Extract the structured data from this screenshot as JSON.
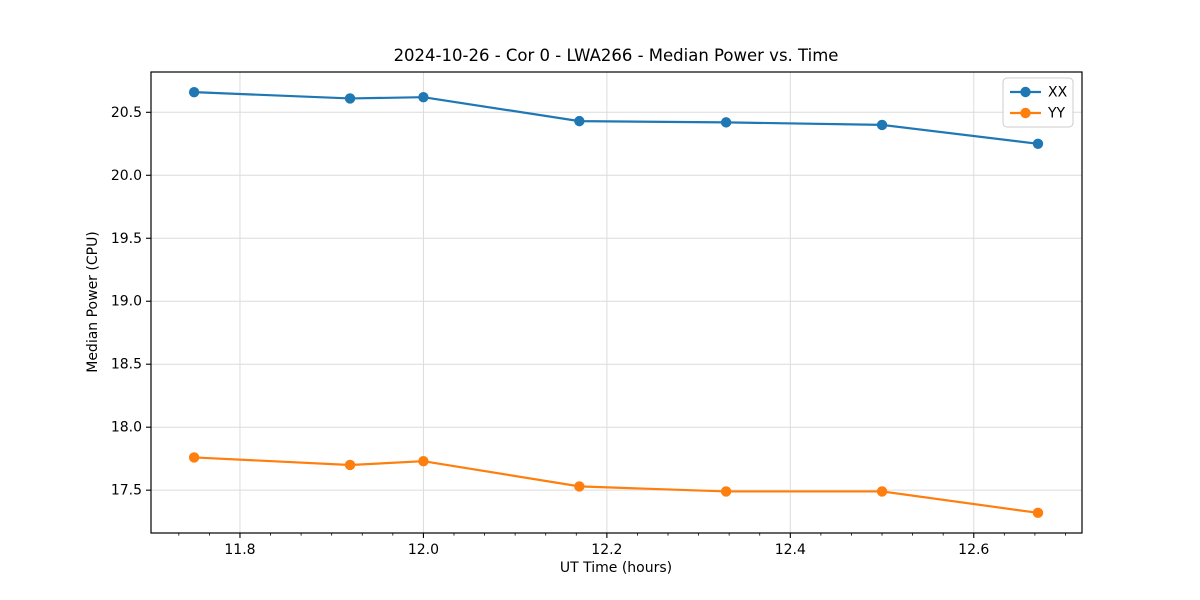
{
  "chart_data": {
    "type": "line",
    "title": "2024-10-26 - Cor 0 - LWA266 - Median Power vs. Time",
    "xlabel": "UT Time (hours)",
    "ylabel": "Median Power (CPU)",
    "x": [
      11.75,
      11.92,
      12.0,
      12.17,
      12.33,
      12.5,
      12.67
    ],
    "series": [
      {
        "name": "XX",
        "color": "#1f77b4",
        "values": [
          20.66,
          20.61,
          20.62,
          20.43,
          20.42,
          20.4,
          20.25
        ]
      },
      {
        "name": "YY",
        "color": "#ff7f0e",
        "values": [
          17.76,
          17.7,
          17.73,
          17.53,
          17.49,
          17.49,
          17.32
        ]
      }
    ],
    "xlim": [
      11.703,
      12.718
    ],
    "ylim": [
      17.16,
      20.82
    ],
    "xticks": [
      11.8,
      12.0,
      12.2,
      12.4,
      12.6
    ],
    "yticks": [
      17.5,
      18.0,
      18.5,
      19.0,
      19.5,
      20.0,
      20.5
    ],
    "x_minor_step": 0.0333333,
    "tick_decimals": 1,
    "grid": true,
    "legend_position": "upper right",
    "legend_entries": [
      "XX",
      "YY"
    ]
  },
  "colors": {
    "background": "#ffffff",
    "grid": "#dcdcdc",
    "spine": "#000000",
    "text": "#000000",
    "series_xx": "#1f77b4",
    "series_yy": "#ff7f0e"
  }
}
